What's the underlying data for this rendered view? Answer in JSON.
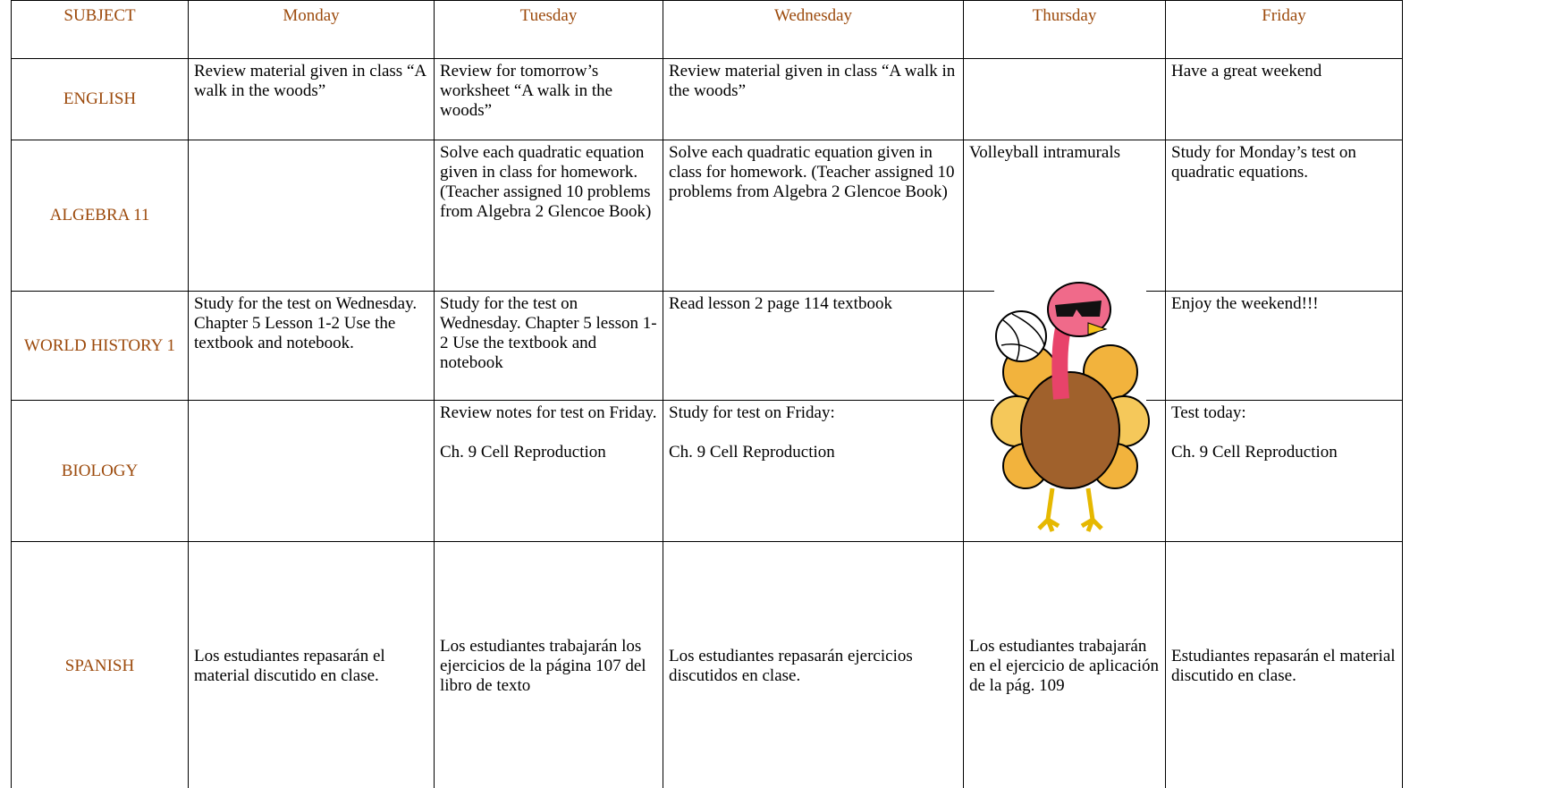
{
  "header": [
    "SUBJECT",
    "Monday",
    "Tuesday",
    "Wednesday",
    "Thursday",
    "Friday"
  ],
  "rows": [
    {
      "subject": "ENGLISH",
      "cells": [
        [
          "Review material given in class “A walk in the woods”"
        ],
        [
          "Review for tomorrow’s worksheet “A walk in the woods”"
        ],
        [
          "Review material given in class “A walk in the woods”"
        ],
        [],
        [
          "Have a great weekend"
        ]
      ]
    },
    {
      "subject": "ALGEBRA 11",
      "cells": [
        [],
        [
          "Solve each quadratic equation given in class for homework. (Teacher assigned 10 problems from Algebra 2 Glencoe Book)"
        ],
        [
          "Solve each quadratic equation given in class for homework. (Teacher assigned 10 problems from Algebra 2 Glencoe Book)"
        ],
        [
          "Volleyball intramurals"
        ],
        [
          "Study for Monday’s test on quadratic equations."
        ]
      ]
    },
    {
      "subject": "WORLD HISTORY 1",
      "cells": [
        [
          "Study for the test on Wednesday. Chapter 5 Lesson 1-2 Use the textbook and notebook."
        ],
        [
          "Study for the test on Wednesday. Chapter 5 lesson 1-2 Use the textbook and notebook"
        ],
        [
          "Read lesson 2 page 114 textbook"
        ],
        [],
        [
          "Enjoy the weekend!!!"
        ]
      ]
    },
    {
      "subject": "BIOLOGY",
      "cells": [
        [],
        [
          "Review notes for test on Friday.",
          "Ch. 9 Cell Reproduction"
        ],
        [
          "Study for test on Friday:",
          "Ch. 9 Cell Reproduction"
        ],
        [],
        [
          "Test today:",
          "Ch. 9 Cell Reproduction"
        ]
      ]
    },
    {
      "subject": "SPANISH",
      "cells": [
        [
          "Los estudiantes repasarán el material discutido en clase."
        ],
        [
          "Los estudiantes trabajarán los ejercicios de la página 107 del libro de texto"
        ],
        [
          "Los estudiantes repasarán ejercicios discutidos en clase."
        ],
        [
          "Los estudiantes trabajarán en el ejercicio de aplicación de la pág. 109"
        ],
        [
          "Estudiantes repasarán el material discutido en clase."
        ]
      ]
    }
  ]
}
